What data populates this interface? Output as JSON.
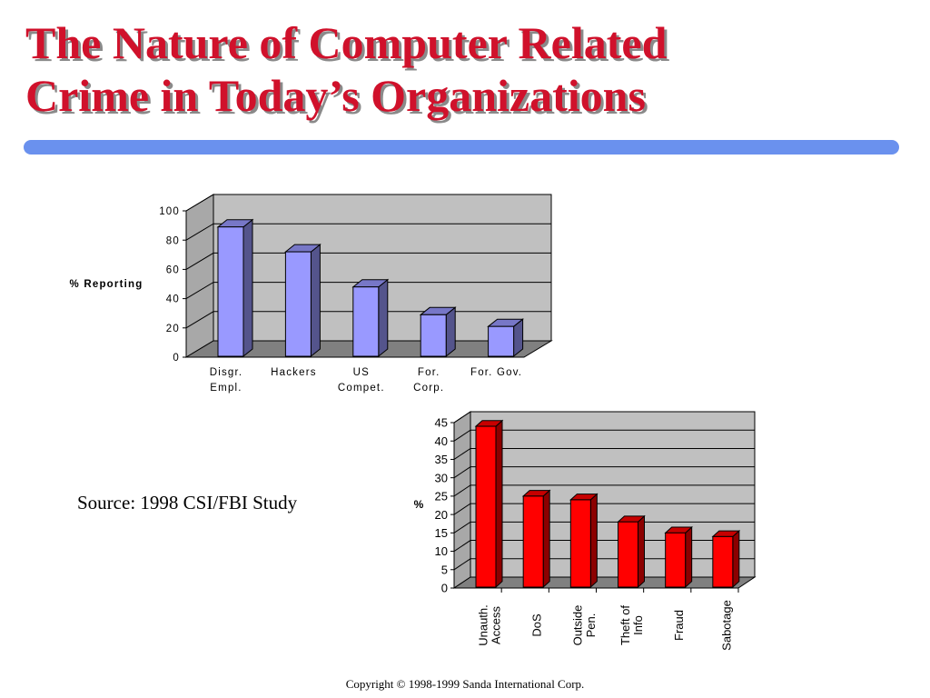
{
  "title": {
    "line1": "The Nature of Computer Related",
    "line2": "Crime in Today’s Organizations"
  },
  "source": "Source: 1998 CSI/FBI Study",
  "copyright": "Copyright © 1998-1999 Sanda International Corp.",
  "colors": {
    "title": "#d0112b",
    "rule": "#6a91ee",
    "bar_chart1": "#9999ff",
    "bar_chart2": "#ff0000",
    "plot_bg": "#c0c0c0"
  },
  "chart_data": [
    {
      "type": "bar",
      "ylabel": "% Reporting",
      "ylim": [
        0,
        100
      ],
      "yticks": [
        "0",
        "20",
        "40",
        "60",
        "80",
        "100"
      ],
      "categories": [
        [
          "Disgr.",
          "Empl."
        ],
        [
          "Hackers"
        ],
        [
          "US",
          "Compet."
        ],
        [
          "For.",
          "Corp."
        ],
        [
          "For. Gov."
        ]
      ],
      "values": [
        89,
        72,
        48,
        29,
        21
      ],
      "grid": true,
      "style": "3d"
    },
    {
      "type": "bar",
      "ylabel": "%",
      "ylim": [
        0,
        45
      ],
      "yticks": [
        "0",
        "5",
        "10",
        "15",
        "20",
        "25",
        "30",
        "35",
        "40",
        "45"
      ],
      "categories": [
        [
          "Unauth.",
          "Access"
        ],
        [
          "DoS"
        ],
        [
          "Outside",
          "Pen."
        ],
        [
          "Theft of",
          "Info"
        ],
        [
          "Fraud"
        ],
        [
          "Sabotage"
        ]
      ],
      "values": [
        44,
        25,
        24,
        18,
        15,
        14
      ],
      "grid": true,
      "style": "3d"
    }
  ]
}
